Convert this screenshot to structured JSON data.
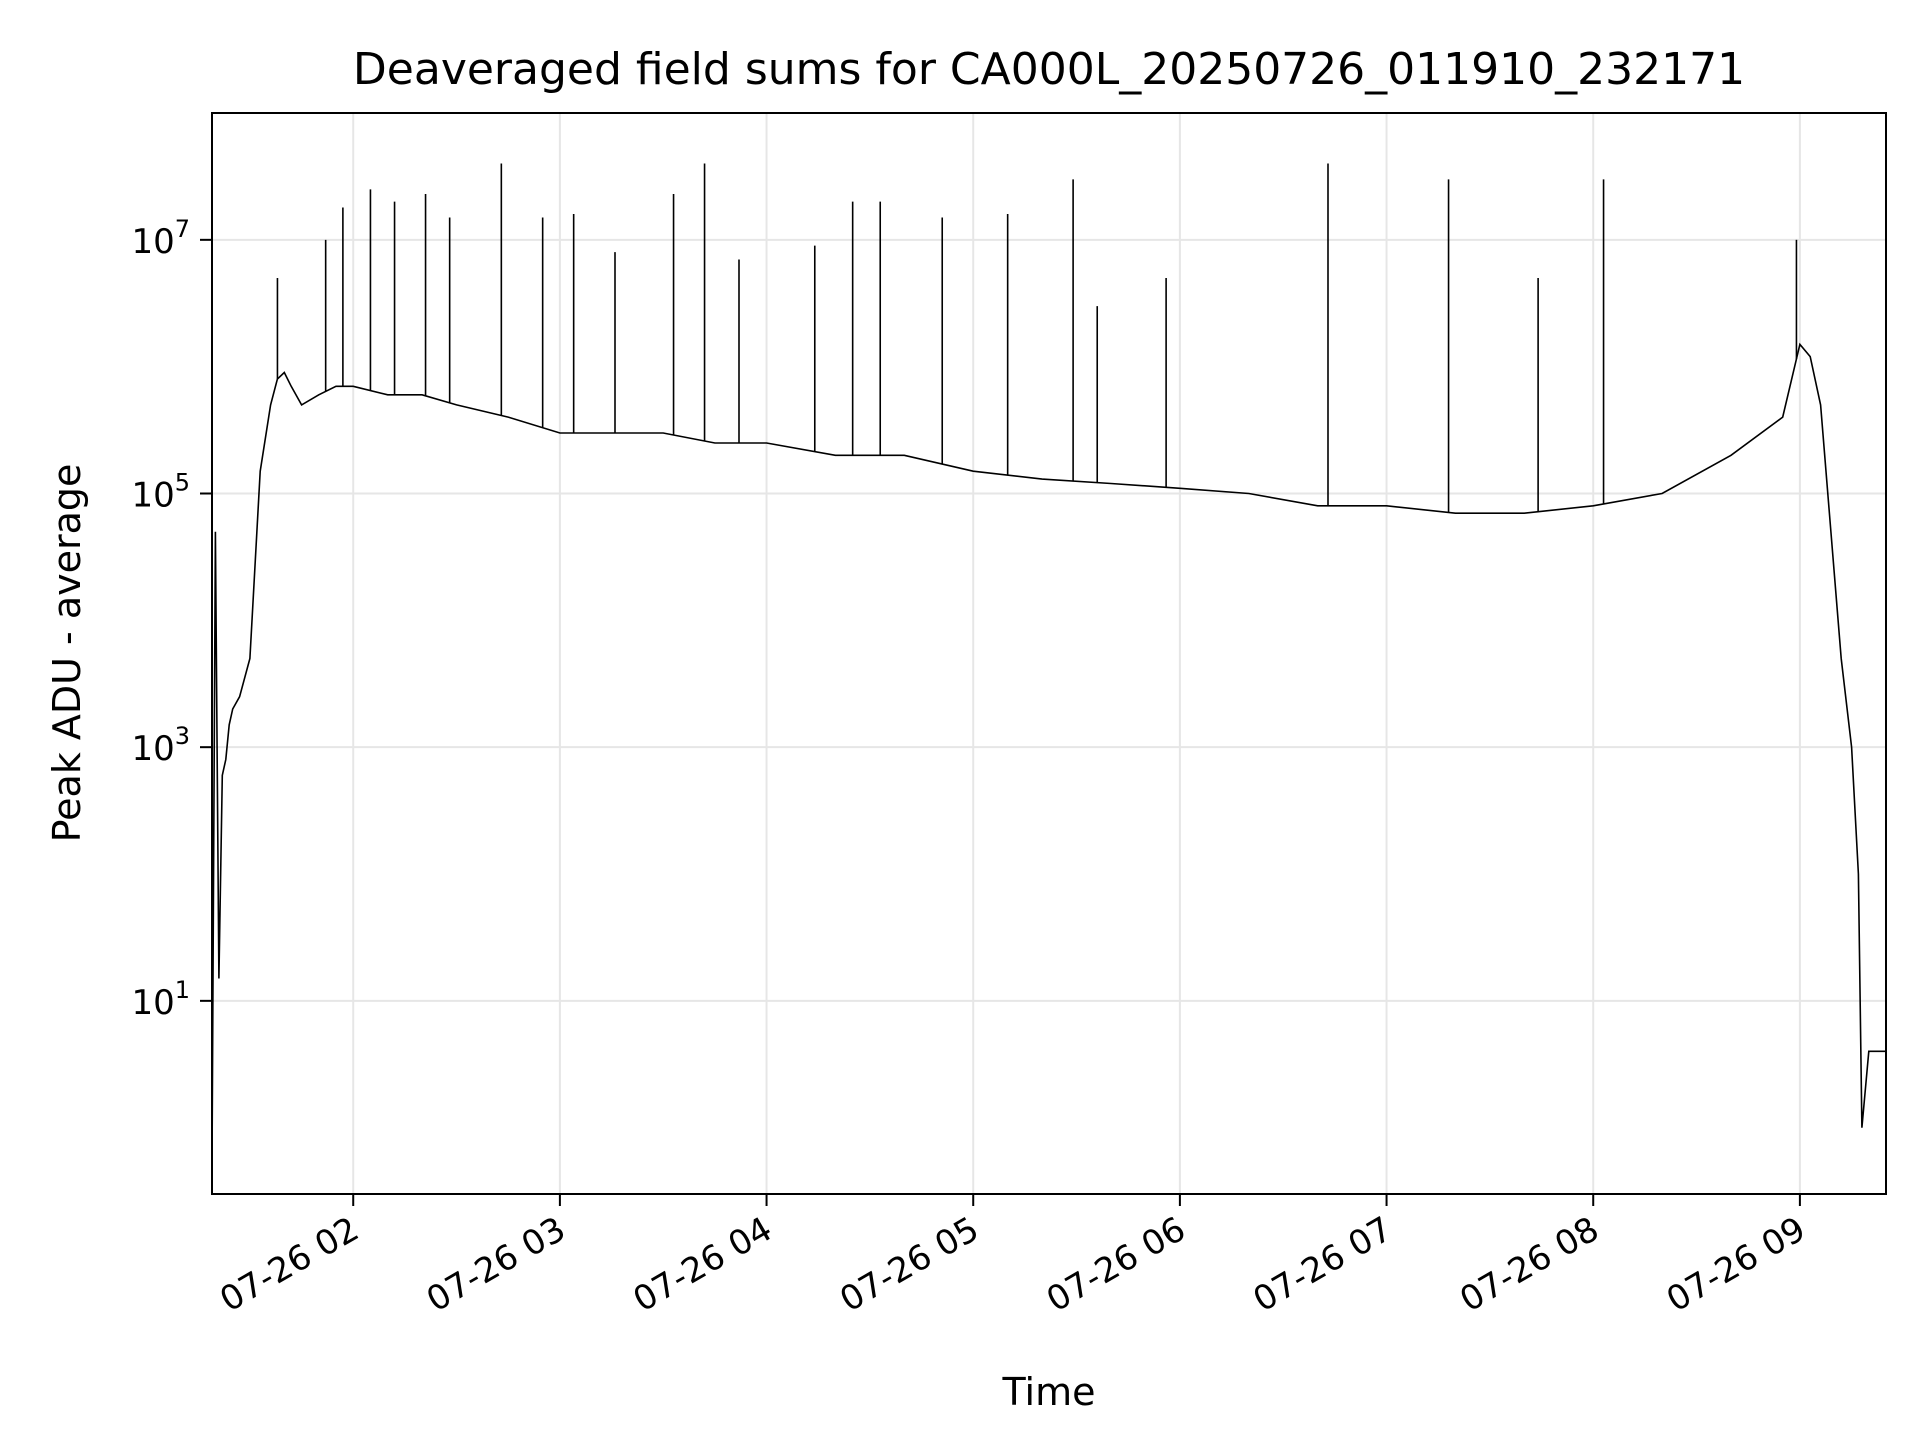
{
  "chart_data": {
    "type": "line",
    "title": "Deaveraged field sums for CA000L_20250726_011910_232171",
    "xlabel": "Time",
    "ylabel": "Peak ADU - average",
    "yscale": "log",
    "ylim": [
      0.3,
      100000000
    ],
    "xlim": [
      "2025-07-26 01:19",
      "2025-07-26 09:25"
    ],
    "grid": true,
    "line_color": "#000000",
    "grid_color": "#e6e6e6",
    "x_ticks": [
      {
        "time": "2025-07-26 02:00",
        "label": "07-26 02"
      },
      {
        "time": "2025-07-26 03:00",
        "label": "07-26 03"
      },
      {
        "time": "2025-07-26 04:00",
        "label": "07-26 04"
      },
      {
        "time": "2025-07-26 05:00",
        "label": "07-26 05"
      },
      {
        "time": "2025-07-26 06:00",
        "label": "07-26 06"
      },
      {
        "time": "2025-07-26 07:00",
        "label": "07-26 07"
      },
      {
        "time": "2025-07-26 08:00",
        "label": "07-26 08"
      },
      {
        "time": "2025-07-26 09:00",
        "label": "07-26 09"
      }
    ],
    "y_ticks": [
      {
        "value": 10,
        "base": "10",
        "exp": "1"
      },
      {
        "value": 1000,
        "base": "10",
        "exp": "3"
      },
      {
        "value": 100000,
        "base": "10",
        "exp": "5"
      },
      {
        "value": 10000000,
        "base": "10",
        "exp": "7"
      }
    ],
    "series": [
      {
        "x": [
          "2025-07-26 01:19",
          "2025-07-26 01:20",
          "2025-07-26 01:21",
          "2025-07-26 01:22",
          "2025-07-26 01:23",
          "2025-07-26 01:24",
          "2025-07-26 01:25",
          "2025-07-26 01:27",
          "2025-07-26 01:30",
          "2025-07-26 01:33",
          "2025-07-26 01:36",
          "2025-07-26 01:38",
          "2025-07-26 01:40",
          "2025-07-26 01:42",
          "2025-07-26 01:45",
          "2025-07-26 01:50",
          "2025-07-26 01:55",
          "2025-07-26 02:00",
          "2025-07-26 02:10",
          "2025-07-26 02:20",
          "2025-07-26 02:30",
          "2025-07-26 02:45",
          "2025-07-26 03:00",
          "2025-07-26 03:15",
          "2025-07-26 03:30",
          "2025-07-26 03:45",
          "2025-07-26 04:00",
          "2025-07-26 04:20",
          "2025-07-26 04:40",
          "2025-07-26 05:00",
          "2025-07-26 05:20",
          "2025-07-26 05:40",
          "2025-07-26 06:00",
          "2025-07-26 06:20",
          "2025-07-26 06:40",
          "2025-07-26 07:00",
          "2025-07-26 07:20",
          "2025-07-26 07:40",
          "2025-07-26 08:00",
          "2025-07-26 08:20",
          "2025-07-26 08:40",
          "2025-07-26 08:55",
          "2025-07-26 09:00",
          "2025-07-26 09:03",
          "2025-07-26 09:06",
          "2025-07-26 09:09",
          "2025-07-26 09:12",
          "2025-07-26 09:15",
          "2025-07-26 09:17",
          "2025-07-26 09:18",
          "2025-07-26 09:20",
          "2025-07-26 09:25"
        ],
        "y": [
          0.5,
          50000,
          15,
          600,
          800,
          1500,
          2000,
          2500,
          5000,
          150000,
          500000,
          800000,
          900000,
          700000,
          500000,
          600000,
          700000,
          700000,
          600000,
          600000,
          500000,
          400000,
          300000,
          300000,
          300000,
          250000,
          250000,
          200000,
          200000,
          150000,
          130000,
          120000,
          110000,
          100000,
          80000,
          80000,
          70000,
          70000,
          80000,
          100000,
          200000,
          400000,
          1500000,
          1200000,
          500000,
          50000,
          5000,
          1000,
          100,
          1,
          4,
          4
        ]
      }
    ],
    "spikes": [
      {
        "x": "2025-07-26 01:38",
        "y": 5000000
      },
      {
        "x": "2025-07-26 01:52",
        "y": 10000000
      },
      {
        "x": "2025-07-26 01:57",
        "y": 18000000
      },
      {
        "x": "2025-07-26 02:05",
        "y": 25000000
      },
      {
        "x": "2025-07-26 02:12",
        "y": 20000000
      },
      {
        "x": "2025-07-26 02:21",
        "y": 23000000
      },
      {
        "x": "2025-07-26 02:28",
        "y": 15000000
      },
      {
        "x": "2025-07-26 02:43",
        "y": 40000000
      },
      {
        "x": "2025-07-26 02:55",
        "y": 15000000
      },
      {
        "x": "2025-07-26 03:04",
        "y": 16000000
      },
      {
        "x": "2025-07-26 03:16",
        "y": 8000000
      },
      {
        "x": "2025-07-26 03:33",
        "y": 23000000
      },
      {
        "x": "2025-07-26 03:42",
        "y": 40000000
      },
      {
        "x": "2025-07-26 03:52",
        "y": 7000000
      },
      {
        "x": "2025-07-26 04:14",
        "y": 9000000
      },
      {
        "x": "2025-07-26 04:25",
        "y": 20000000
      },
      {
        "x": "2025-07-26 04:33",
        "y": 20000000
      },
      {
        "x": "2025-07-26 04:51",
        "y": 15000000
      },
      {
        "x": "2025-07-26 05:10",
        "y": 16000000
      },
      {
        "x": "2025-07-26 05:29",
        "y": 30000000
      },
      {
        "x": "2025-07-26 05:36",
        "y": 3000000
      },
      {
        "x": "2025-07-26 05:56",
        "y": 5000000
      },
      {
        "x": "2025-07-26 06:43",
        "y": 40000000
      },
      {
        "x": "2025-07-26 07:18",
        "y": 30000000
      },
      {
        "x": "2025-07-26 07:44",
        "y": 5000000
      },
      {
        "x": "2025-07-26 08:03",
        "y": 30000000
      },
      {
        "x": "2025-07-26 08:59",
        "y": 10000000
      }
    ]
  }
}
